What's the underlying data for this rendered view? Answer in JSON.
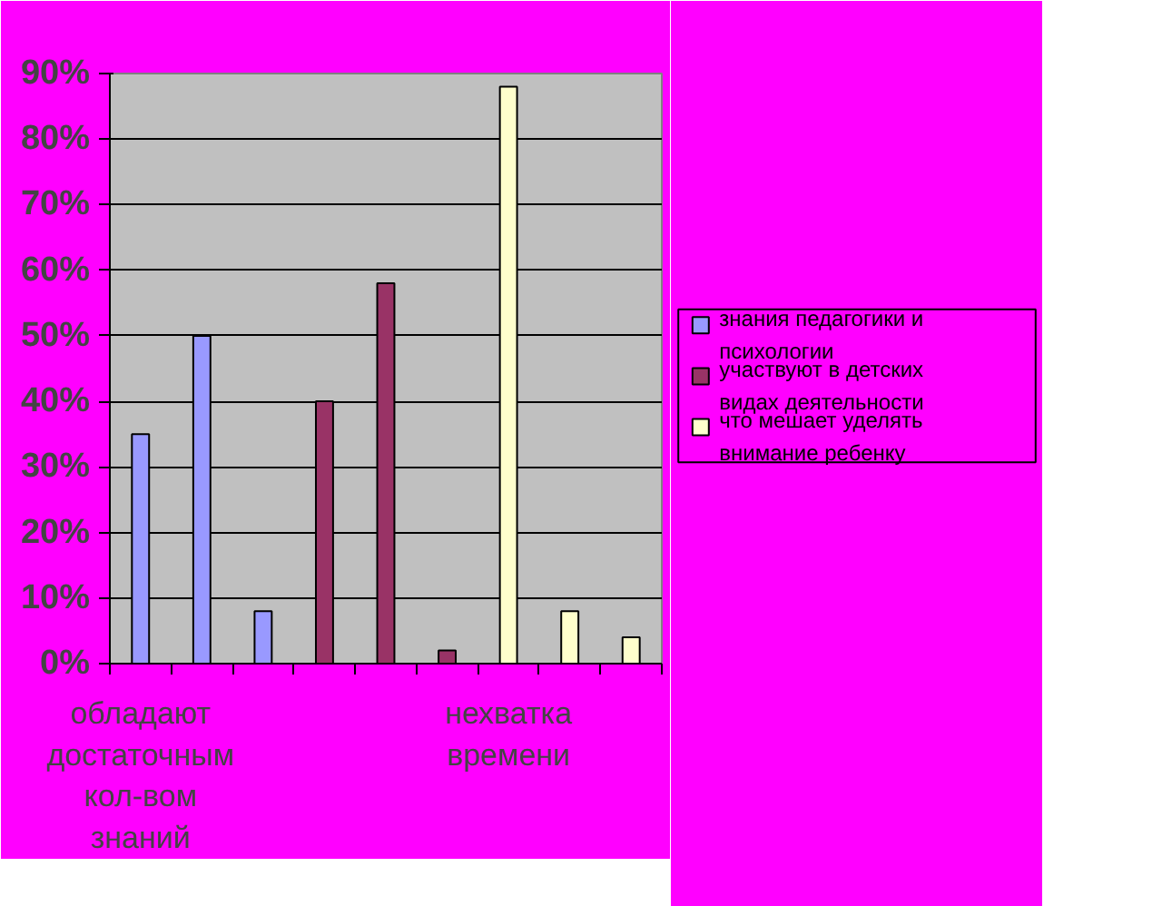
{
  "chart_data": {
    "type": "bar",
    "categories": [
      "обладают достаточным кол-вом знаний",
      null,
      null,
      null,
      null,
      null,
      "нехватка времени",
      null,
      null
    ],
    "series": [
      {
        "name": "знания педагогики и психологии",
        "color": "#9999ff",
        "values": [
          35,
          50,
          8,
          null,
          null,
          null,
          null,
          null,
          null
        ]
      },
      {
        "name": "участвуют в детских видах деятельности",
        "color": "#993366",
        "values": [
          null,
          null,
          null,
          40,
          58,
          2,
          null,
          null,
          null
        ]
      },
      {
        "name": "что мешает уделять внимание ребенку",
        "color": "#ffffcc",
        "values": [
          null,
          null,
          null,
          null,
          null,
          null,
          88,
          8,
          4
        ]
      }
    ],
    "ylim": [
      0,
      90
    ],
    "yticks": [
      {
        "value": 0,
        "label": "0%"
      },
      {
        "value": 10,
        "label": "10%"
      },
      {
        "value": 20,
        "label": "20%"
      },
      {
        "value": 30,
        "label": "30%"
      },
      {
        "value": 40,
        "label": "40%"
      },
      {
        "value": 50,
        "label": "50%"
      },
      {
        "value": 60,
        "label": "60%"
      },
      {
        "value": 70,
        "label": "70%"
      },
      {
        "value": 80,
        "label": "80%"
      },
      {
        "value": 90,
        "label": "90%"
      }
    ],
    "grid": "y",
    "legend": "right"
  }
}
